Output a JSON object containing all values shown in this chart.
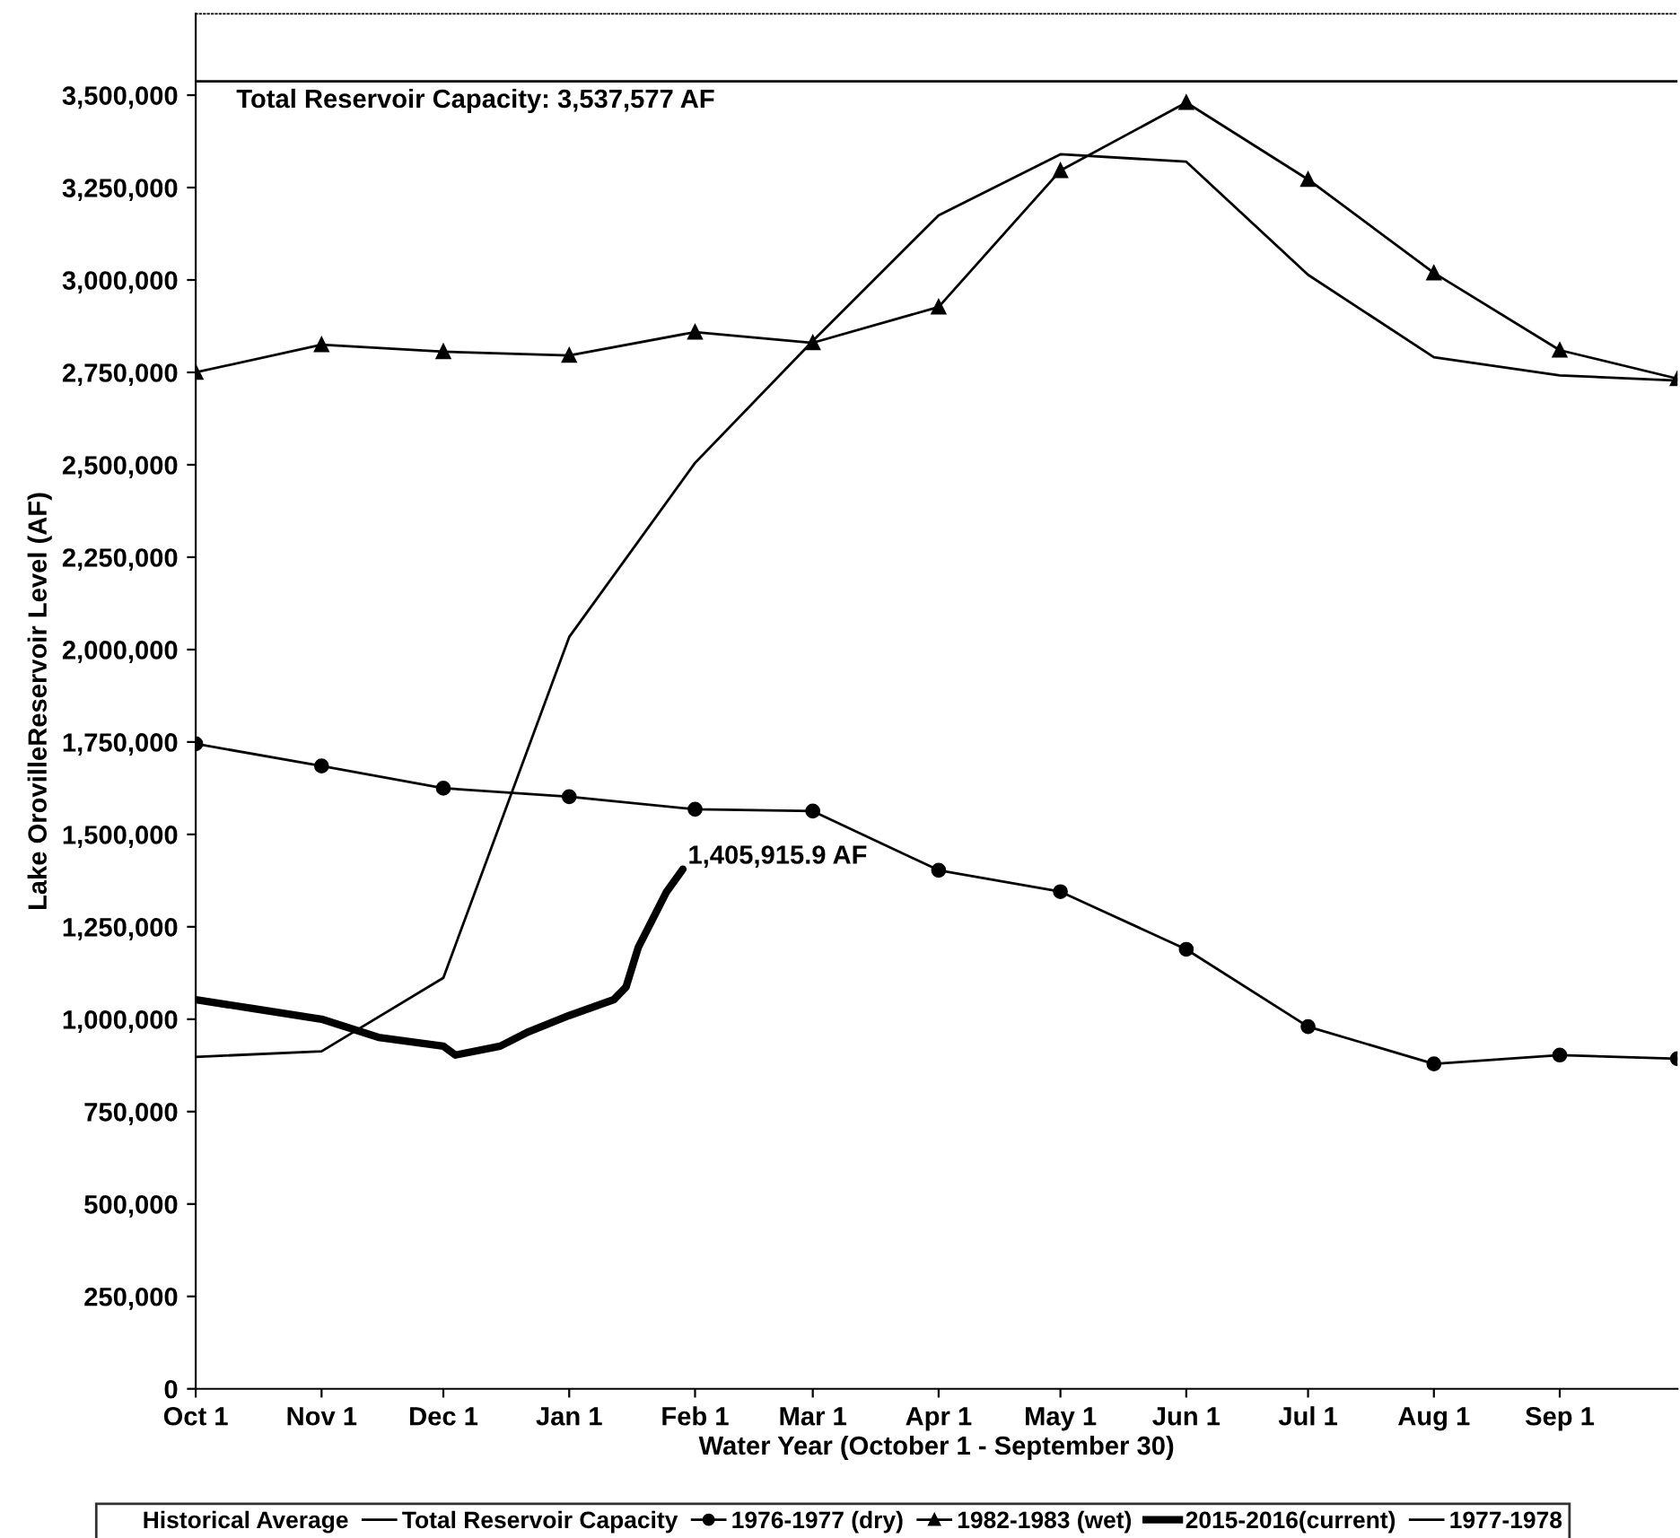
{
  "chart_data": {
    "type": "line",
    "xlabel": "Water Year (October 1 - September 30)",
    "ylabel": "Lake OrovilleReservoir Level (AF)",
    "xlim": [
      "2015-10-01",
      "2016-09-30"
    ],
    "ylim": [
      0,
      3720000
    ],
    "xticks": [
      {
        "value": "2015-10-01",
        "label": "Oct 1"
      },
      {
        "value": "2015-11-01",
        "label": "Nov 1"
      },
      {
        "value": "2015-12-01",
        "label": "Dec 1"
      },
      {
        "value": "2016-01-01",
        "label": "Jan 1"
      },
      {
        "value": "2016-02-01",
        "label": "Feb 1"
      },
      {
        "value": "2016-03-01",
        "label": "Mar 1"
      },
      {
        "value": "2016-04-01",
        "label": "Apr 1"
      },
      {
        "value": "2016-05-01",
        "label": "May 1"
      },
      {
        "value": "2016-06-01",
        "label": "Jun 1"
      },
      {
        "value": "2016-07-01",
        "label": "Jul 1"
      },
      {
        "value": "2016-08-01",
        "label": "Aug 1"
      },
      {
        "value": "2016-09-01",
        "label": "Sep 1"
      }
    ],
    "yticks": [
      0,
      {
        "value": 250000,
        "label": "250,000"
      },
      {
        "value": 500000,
        "label": "500,000"
      },
      {
        "value": 750000,
        "label": "750,000"
      },
      {
        "value": 1000000,
        "label": "1,000,000"
      },
      {
        "value": 1250000,
        "label": "1,250,000"
      },
      {
        "value": 1500000,
        "label": "1,500,000"
      },
      {
        "value": 1750000,
        "label": "1,750,000"
      },
      {
        "value": 2000000,
        "label": "2,000,000"
      },
      {
        "value": 2250000,
        "label": "2,250,000"
      },
      {
        "value": 2500000,
        "label": "2,500,000"
      },
      {
        "value": 2750000,
        "label": "2,750,000"
      },
      {
        "value": 3000000,
        "label": "3,000,000"
      },
      {
        "value": 3250000,
        "label": "3,250,000"
      },
      {
        "value": 3500000,
        "label": "3,500,000"
      }
    ],
    "grid": false,
    "legend": "bottom",
    "legend_title": "Historical Average",
    "series": [
      {
        "name": "Total Reservoir Capacity",
        "color": "#000000",
        "x": [
          "2015-10-01",
          "2016-09-30"
        ],
        "values": [
          3537577,
          3537577
        ],
        "marker": "none"
      },
      {
        "name": "1976-1977 (dry)",
        "color": "#000000",
        "marker": "circle",
        "x": [
          "2015-10-01",
          "2015-11-01",
          "2015-12-01",
          "2016-01-01",
          "2016-02-01",
          "2016-03-01",
          "2016-04-01",
          "2016-05-01",
          "2016-06-01",
          "2016-07-01",
          "2016-08-01",
          "2016-09-01",
          "2016-09-30"
        ],
        "values": [
          1745000,
          1685000,
          1625000,
          1602000,
          1568000,
          1563000,
          1403000,
          1345000,
          1189000,
          980000,
          879000,
          903000,
          893000
        ]
      },
      {
        "name": "1982-1983 (wet)",
        "color": "#000000",
        "marker": "triangle",
        "x": [
          "2015-10-01",
          "2015-11-01",
          "2015-12-01",
          "2016-01-01",
          "2016-02-01",
          "2016-03-01",
          "2016-04-01",
          "2016-05-01",
          "2016-06-01",
          "2016-07-01",
          "2016-08-01",
          "2016-09-01",
          "2016-09-30"
        ],
        "values": [
          2750000,
          2825000,
          2806000,
          2796000,
          2859000,
          2830000,
          2927000,
          3296000,
          3480000,
          3272000,
          3019000,
          2810000,
          2733000
        ]
      },
      {
        "name": "2015-2016(current)",
        "color": "#000000",
        "marker": "none",
        "x": [
          "2015-10-01",
          "2015-10-15",
          "2015-11-01",
          "2015-11-15",
          "2015-12-01",
          "2015-12-04",
          "2015-12-15",
          "2015-12-22",
          "2016-01-01",
          "2016-01-12",
          "2016-01-15",
          "2016-01-18",
          "2016-01-25",
          "2016-01-29"
        ],
        "values": [
          1053000,
          1029000,
          1000000,
          951000,
          927000,
          903000,
          927000,
          966000,
          1010000,
          1053000,
          1087000,
          1194000,
          1345000,
          1405915.9
        ]
      },
      {
        "name": "1977-1978",
        "color": "#000000",
        "marker": "none",
        "x": [
          "2015-10-01",
          "2015-11-01",
          "2015-12-01",
          "2016-01-01",
          "2016-02-01",
          "2016-03-01",
          "2016-04-01",
          "2016-05-01",
          "2016-06-01",
          "2016-07-01",
          "2016-08-01",
          "2016-09-01",
          "2016-09-30"
        ],
        "values": [
          898000,
          913000,
          1112000,
          2034000,
          2505000,
          2835000,
          3175000,
          3340000,
          3320000,
          3014000,
          2791000,
          2742000,
          2728000
        ]
      }
    ],
    "annotations": [
      {
        "text": "Total Reservoir Capacity: 3,537,577 AF",
        "x": "2015-10-11",
        "y": 3537577
      },
      {
        "text": "1,405,915.9 AF",
        "x": "2016-01-29",
        "y": 1405915.9
      }
    ]
  }
}
